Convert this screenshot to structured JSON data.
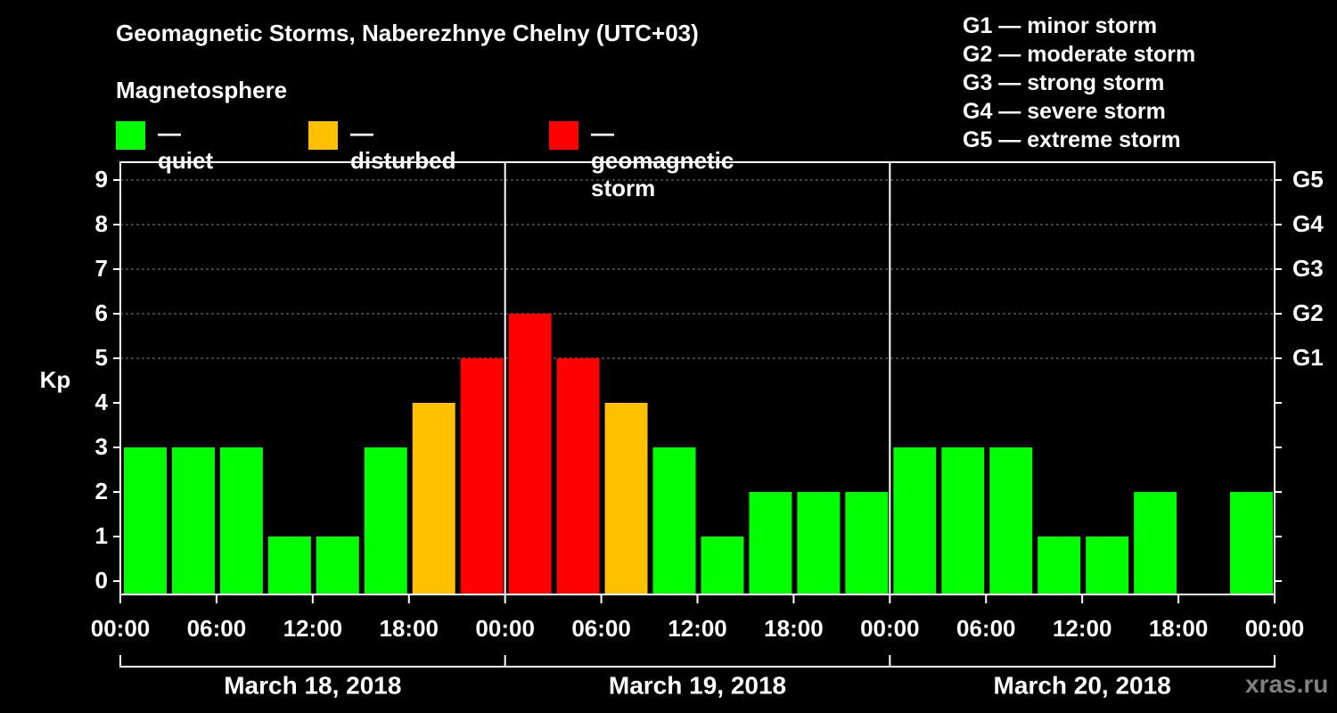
{
  "title": "Geomagnetic Storms, Naberezhnye Chelny (UTC+03)",
  "subtitle": "Magnetosphere",
  "legend": [
    {
      "label": "— quiet",
      "color": "#00ff00"
    },
    {
      "label": "— disturbed",
      "color": "#ffc000"
    },
    {
      "label": "— geomagnetic storm",
      "color": "#ff0000"
    }
  ],
  "storm_scale": [
    "G1 — minor storm",
    "G2 — moderate storm",
    "G3 — strong storm",
    "G4 — severe storm",
    "G5 — extreme storm"
  ],
  "watermark": "xras.ru",
  "chart_data": {
    "type": "bar",
    "title": "Geomagnetic Storms, Naberezhnye Chelny (UTC+03)",
    "ylabel": "Kp",
    "ylim": [
      0,
      9
    ],
    "yticks": [
      "0",
      "1",
      "2",
      "3",
      "4",
      "5",
      "6",
      "7",
      "8",
      "9"
    ],
    "y2ticks": [
      {
        "value": 5,
        "label": "G1"
      },
      {
        "value": 6,
        "label": "G2"
      },
      {
        "value": 7,
        "label": "G3"
      },
      {
        "value": 8,
        "label": "G4"
      },
      {
        "value": 9,
        "label": "G5"
      }
    ],
    "xticks": [
      "00:00",
      "06:00",
      "12:00",
      "18:00",
      "00:00",
      "06:00",
      "12:00",
      "18:00",
      "00:00",
      "06:00",
      "12:00",
      "18:00",
      "00:00"
    ],
    "days": [
      "March 18, 2018",
      "March 19, 2018",
      "March 20, 2018"
    ],
    "grid": true,
    "colors": {
      "quiet": "#00ff00",
      "disturbed": "#ffc000",
      "storm": "#ff0000"
    },
    "values": [
      3,
      3,
      3,
      1,
      1,
      3,
      4,
      5,
      6,
      5,
      4,
      3,
      1,
      2,
      2,
      2,
      3,
      3,
      3,
      1,
      1,
      2,
      null,
      2
    ],
    "status": [
      "quiet",
      "quiet",
      "quiet",
      "quiet",
      "quiet",
      "quiet",
      "disturbed",
      "storm",
      "storm",
      "storm",
      "disturbed",
      "quiet",
      "quiet",
      "quiet",
      "quiet",
      "quiet",
      "quiet",
      "quiet",
      "quiet",
      "quiet",
      "quiet",
      "quiet",
      null,
      "quiet"
    ]
  }
}
